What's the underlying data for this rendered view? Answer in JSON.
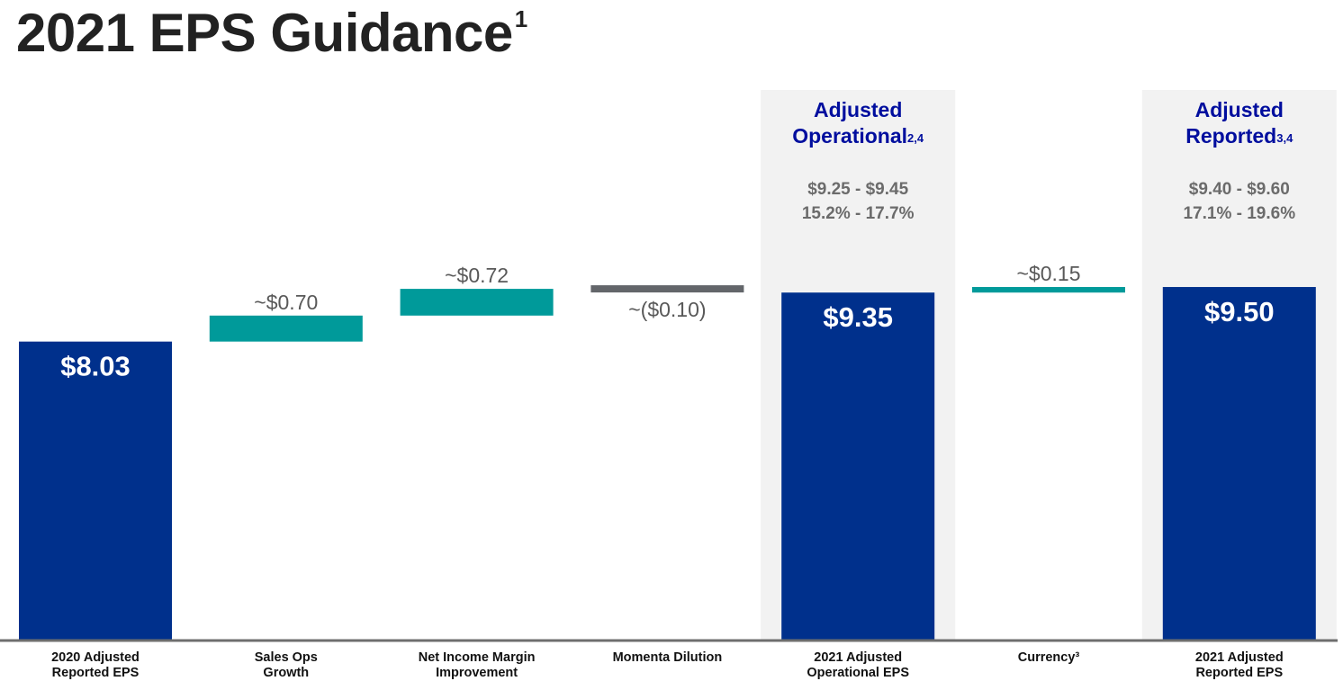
{
  "header": {
    "title": "2021 EPS Guidance",
    "title_footnote": "1"
  },
  "colors": {
    "total": "#00308c",
    "increase": "#009a9a",
    "decrease": "#63666a",
    "panel": "#f2f2f2",
    "panel_heading": "#000e9e",
    "label": "#595959",
    "range_text": "#6b6b6b",
    "axis": "#6e6e6e"
  },
  "highlights": [
    {
      "category_index": 4,
      "line1": "Adjusted",
      "line2": "Operational",
      "footnote": "2,4",
      "range_eps": "$9.25 - $9.45",
      "range_growth": "15.2% - 17.7%"
    },
    {
      "category_index": 6,
      "line1": "Adjusted",
      "line2": "Reported",
      "footnote": "3,4",
      "range_eps": "$9.40 - $9.60",
      "range_growth": "17.1% - 19.6%"
    }
  ],
  "chart_data": {
    "type": "bar",
    "subtype": "waterfall",
    "categories": [
      "2020 Adjusted Reported EPS",
      "Sales Ops Growth",
      "Net Income Margin Improvement",
      "Momenta Dilution",
      "2021 Adjusted Operational EPS",
      "Currency³",
      "2021 Adjusted Reported EPS"
    ],
    "category_lines": [
      [
        "2020 Adjusted",
        "Reported EPS"
      ],
      [
        "Sales Ops",
        "Growth"
      ],
      [
        "Net Income Margin",
        "Improvement"
      ],
      [
        "Momenta Dilution"
      ],
      [
        "2021 Adjusted",
        "Operational EPS"
      ],
      [
        "Currency³"
      ],
      [
        "2021 Adjusted",
        "Reported EPS"
      ]
    ],
    "values": [
      8.03,
      0.7,
      0.72,
      -0.1,
      9.35,
      0.15,
      9.5
    ],
    "kinds": [
      "total",
      "increase",
      "increase",
      "decrease",
      "total",
      "increase",
      "total"
    ],
    "data_labels": [
      "$8.03",
      "~$0.70",
      "~$0.72",
      "~($0.10)",
      "$9.35",
      "~$0.15",
      "$9.50"
    ]
  }
}
